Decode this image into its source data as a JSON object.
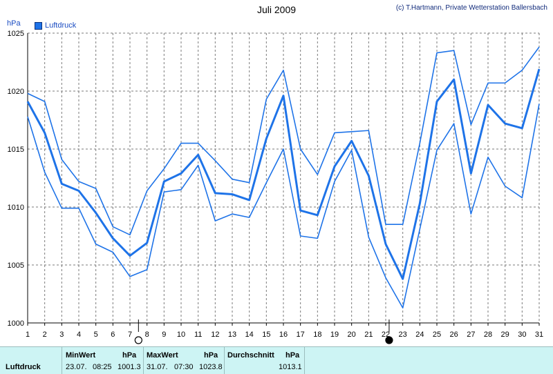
{
  "header": {
    "title": "Juli 2009",
    "credit": "(c) T.Hartmann, Private Wetterstation Ballersbach",
    "unit": "hPa",
    "legend_label": "Luftdruck"
  },
  "colors": {
    "line": "#1e73e8",
    "grid": "#7a7a7a",
    "footer_bg": "#cdf4f4"
  },
  "chart_data": {
    "type": "line",
    "x": [
      1,
      2,
      3,
      4,
      5,
      6,
      7,
      8,
      9,
      10,
      11,
      12,
      13,
      14,
      15,
      16,
      17,
      18,
      19,
      20,
      21,
      22,
      23,
      24,
      25,
      26,
      27,
      28,
      29,
      30,
      31
    ],
    "ylim": [
      1000,
      1025
    ],
    "yticks": [
      1000,
      1005,
      1010,
      1015,
      1020,
      1025
    ],
    "title": "Juli 2009",
    "ylabel": "hPa",
    "grid": true,
    "legend": "top-left",
    "series": [
      {
        "name": "Luftdruck",
        "role": "max",
        "values": [
          1019.8,
          1019.1,
          1014.1,
          1012.2,
          1011.6,
          1008.3,
          1007.6,
          1011.4,
          1013.3,
          1015.5,
          1015.5,
          1014.0,
          1012.4,
          1012.1,
          1019.3,
          1021.8,
          1015.0,
          1012.8,
          1016.4,
          1016.5,
          1016.6,
          1008.5,
          1008.5,
          1015.5,
          1023.3,
          1023.5,
          1017.1,
          1020.7,
          1020.7,
          1021.8,
          1023.8
        ]
      },
      {
        "name": "Luftdruck",
        "role": "avg",
        "values": [
          1019.1,
          1016.4,
          1012.0,
          1011.4,
          1009.5,
          1007.3,
          1005.8,
          1006.9,
          1012.2,
          1012.9,
          1014.5,
          1011.2,
          1011.1,
          1010.6,
          1015.9,
          1019.6,
          1009.7,
          1009.3,
          1013.5,
          1015.7,
          1012.7,
          1006.8,
          1003.8,
          1010.3,
          1019.1,
          1021.0,
          1012.9,
          1018.8,
          1017.2,
          1016.8,
          1021.9
        ]
      },
      {
        "name": "Luftdruck",
        "role": "min",
        "values": [
          1017.8,
          1013.0,
          1009.9,
          1009.9,
          1006.8,
          1006.1,
          1004.0,
          1004.6,
          1011.3,
          1011.5,
          1013.6,
          1008.8,
          1009.4,
          1009.1,
          1012.1,
          1015.0,
          1007.5,
          1007.3,
          1012.2,
          1014.9,
          1007.4,
          1003.9,
          1001.3,
          1008.1,
          1014.9,
          1017.2,
          1009.4,
          1014.3,
          1011.8,
          1010.8,
          1018.9
        ]
      }
    ],
    "markers": [
      {
        "x": 7.5,
        "symbol": "open-circle"
      },
      {
        "x": 22.2,
        "symbol": "filled-circle"
      }
    ]
  },
  "footer": {
    "label": "Luftdruck",
    "min": {
      "header": "MinWert",
      "unit": "hPa",
      "date": "23.07.",
      "time": "08:25",
      "value": "1001.3"
    },
    "max": {
      "header": "MaxWert",
      "unit": "hPa",
      "date": "31.07.",
      "time": "07:30",
      "value": "1023.8"
    },
    "avg": {
      "header": "Durchschnitt",
      "unit": "hPa",
      "value": "1013.1"
    }
  }
}
